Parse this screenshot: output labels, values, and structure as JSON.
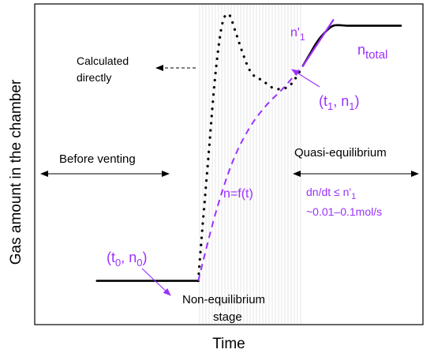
{
  "chart_data": {
    "type": "line",
    "xlabel": "Time",
    "ylabel": "Gas amount in the chamber",
    "annotations": {
      "calculated": [
        "Calculated",
        "directly"
      ],
      "before_venting": "Before venting",
      "quasi_equilibrium": "Quasi-equilibrium",
      "non_equilibrium": [
        "Non-equilibrium",
        "stage"
      ],
      "n_equation": "n=f(t)",
      "rate_line1": "dn/dt ≤ n'",
      "rate_line1_sub": "1",
      "rate_line2": "~0.01–0.1mol/s",
      "n_total_main": "n",
      "n_total_sub": "total",
      "n1_prime_main": "n'",
      "n1_prime_sub": "1",
      "point_t1_a": "(t",
      "point_t1_sub1": "1",
      "point_t1_b": ", n",
      "point_t1_sub2": "1",
      "point_t1_c": ")",
      "point_t0_a": "(t",
      "point_t0_sub1": "0",
      "point_t0_b": ", n",
      "point_t0_sub2": "0",
      "point_t0_c": ")"
    },
    "xlim": [
      0,
      1
    ],
    "ylim": [
      0,
      1
    ],
    "series": [
      {
        "style": "solid-black",
        "x": [
          0.1,
          0.4
        ],
        "y": [
          0.07,
          0.07
        ]
      },
      {
        "style": "dotted-black",
        "x": [
          0.4,
          0.41,
          0.43,
          0.45,
          0.47,
          0.49,
          0.51,
          0.53,
          0.55,
          0.57,
          0.59,
          0.61,
          0.63,
          0.65,
          0.67,
          0.69,
          0.71
        ],
        "y": [
          0.07,
          0.22,
          0.5,
          0.78,
          0.96,
          1.0,
          0.94,
          0.87,
          0.81,
          0.78,
          0.77,
          0.75,
          0.74,
          0.74,
          0.75,
          0.78,
          0.82
        ]
      },
      {
        "style": "dashed-purple",
        "x": [
          0.4,
          0.45,
          0.5,
          0.55,
          0.6,
          0.65,
          0.71
        ],
        "y": [
          0.07,
          0.3,
          0.48,
          0.6,
          0.68,
          0.74,
          0.82
        ]
      },
      {
        "style": "solid-black",
        "x": [
          0.71,
          0.73,
          0.75,
          0.77,
          0.8,
          0.84,
          0.88,
          1.0
        ],
        "y": [
          0.82,
          0.86,
          0.9,
          0.93,
          0.96,
          0.96,
          0.96,
          0.96
        ]
      },
      {
        "style": "solid-purple-tangent",
        "x": [
          0.71,
          0.8
        ],
        "y": [
          0.82,
          0.98
        ]
      }
    ],
    "shaded_region": {
      "x": [
        0.4,
        0.71
      ]
    }
  },
  "colors": {
    "purple": "#9b30ff",
    "line": "#000000",
    "shade": "#f2f2f2"
  }
}
